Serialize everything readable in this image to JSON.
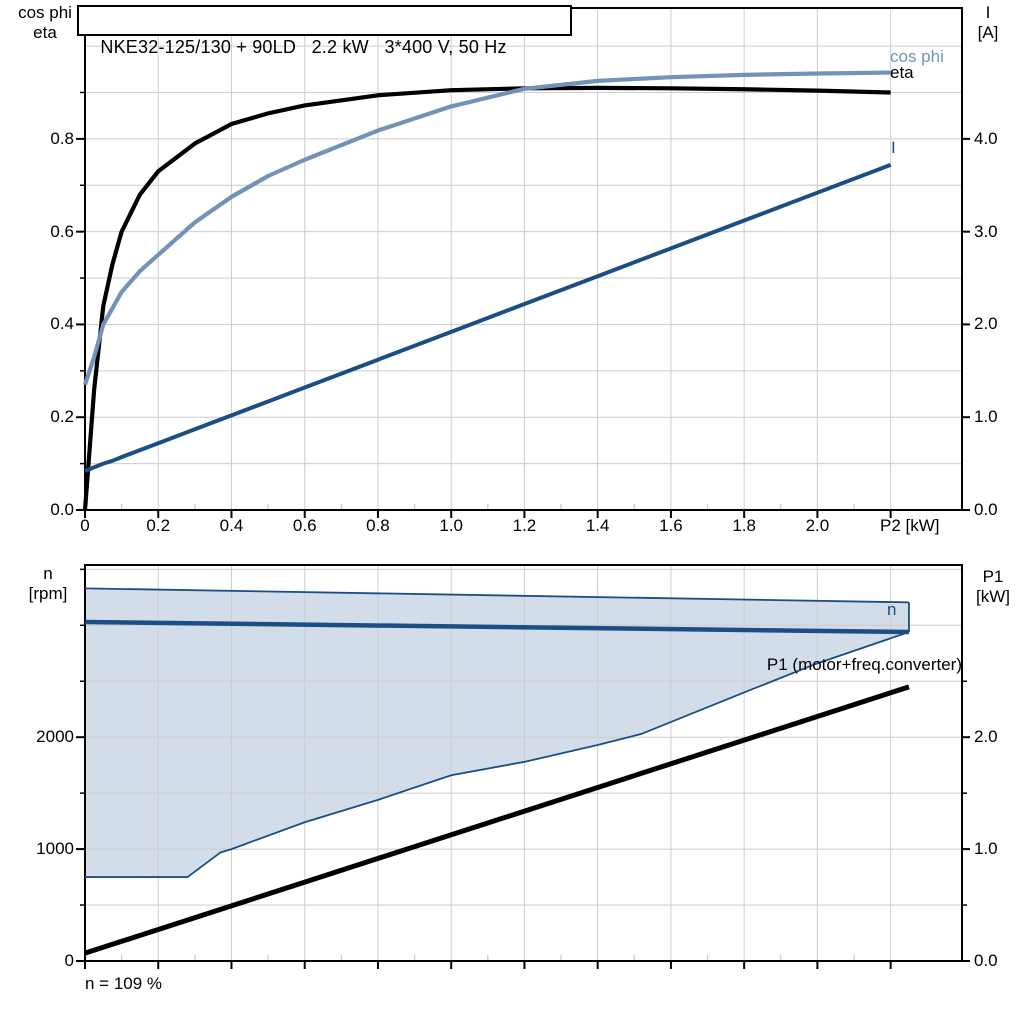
{
  "colors": {
    "eta": "#000000",
    "cos_phi": "#7293b8",
    "current": "#1b4e83",
    "speed": "#1b4e83",
    "p1": "#000000",
    "band_fill": "#d3dde9",
    "band_edge": "#1b4e83",
    "grid": "#cccccc",
    "axis": "#000000"
  },
  "top_chart": {
    "title": "NKE32-125/130 + 90LD   2.2 kW   3*400 V, 50 Hz",
    "left_axis": {
      "title": [
        "cos phi",
        "eta"
      ],
      "ticks": [
        "0.0",
        "0.2",
        "0.4",
        "0.6",
        "0.8"
      ],
      "tick_values": [
        0,
        0.2,
        0.4,
        0.6,
        0.8
      ]
    },
    "right_axis": {
      "title": [
        "I",
        "[A]"
      ],
      "ticks": [
        "0.0",
        "1.0",
        "2.0",
        "3.0",
        "4.0"
      ],
      "tick_values": [
        0,
        1,
        2,
        3,
        4
      ]
    },
    "x_axis": {
      "ticks": [
        "0",
        "0.2",
        "0.4",
        "0.6",
        "0.8",
        "1.0",
        "1.2",
        "1.4",
        "1.6",
        "1.8",
        "2.0"
      ],
      "tick_values": [
        0,
        0.2,
        0.4,
        0.6,
        0.8,
        1.0,
        1.2,
        1.4,
        1.6,
        1.8,
        2.0
      ],
      "unit_label": "P2 [kW]"
    },
    "curve_labels": {
      "cos_phi": "cos phi",
      "eta": "eta",
      "current": "I"
    }
  },
  "bottom_chart": {
    "left_axis": {
      "title": [
        "n",
        "[rpm]"
      ],
      "ticks": [
        "0",
        "1000",
        "2000"
      ],
      "tick_values": [
        0,
        1000,
        2000
      ]
    },
    "right_axis": {
      "title": [
        "P1",
        "[kW]"
      ],
      "ticks": [
        "0.0",
        "1.0",
        "2.0"
      ],
      "tick_values": [
        0,
        1,
        2
      ]
    },
    "annotation": "P1 (motor+freq.converter)",
    "n_label": "n",
    "footnote": "n = 109 %"
  },
  "chart_data": [
    {
      "type": "line",
      "title": "NKE32-125/130 + 90LD   2.2 kW   3*400 V, 50 Hz",
      "xlabel": "P2 [kW]",
      "ylabel_left": "cos phi / eta",
      "ylabel_right": "I [A]",
      "xlim": [
        0,
        2.39
      ],
      "ylim_left": [
        0,
        1.08
      ],
      "ylim_right": [
        0,
        5.4
      ],
      "grid": true,
      "x": [
        0,
        0.025,
        0.05,
        0.075,
        0.1,
        0.15,
        0.2,
        0.3,
        0.4,
        0.5,
        0.6,
        0.8,
        1.0,
        1.2,
        1.4,
        1.6,
        1.8,
        2.0,
        2.2
      ],
      "series": [
        {
          "name": "eta",
          "axis": "left",
          "color_key": "eta",
          "width": 4.2,
          "values": [
            0,
            0.26,
            0.44,
            0.53,
            0.6,
            0.68,
            0.73,
            0.79,
            0.832,
            0.855,
            0.872,
            0.894,
            0.905,
            0.909,
            0.91,
            0.909,
            0.907,
            0.904,
            0.9
          ]
        },
        {
          "name": "cos phi",
          "axis": "left",
          "color_key": "cos_phi",
          "width": 4.2,
          "values": [
            0.27,
            0.33,
            0.4,
            0.435,
            0.47,
            0.515,
            0.55,
            0.62,
            0.675,
            0.72,
            0.755,
            0.818,
            0.87,
            0.908,
            0.925,
            0.933,
            0.938,
            0.941,
            0.943
          ]
        },
        {
          "name": "I",
          "axis": "right",
          "color_key": "current",
          "width": 4,
          "values": [
            0.42,
            0.46,
            0.5,
            0.53,
            0.57,
            0.645,
            0.72,
            0.87,
            1.02,
            1.17,
            1.32,
            1.62,
            1.92,
            2.22,
            2.52,
            2.82,
            3.12,
            3.42,
            3.72
          ]
        }
      ]
    },
    {
      "type": "area+line",
      "title": "",
      "xlabel": "P2 [kW]",
      "ylabel_left": "n [rpm]",
      "ylabel_right": "P1 [kW]",
      "xlim": [
        0,
        2.39
      ],
      "ylim_left": [
        0,
        3540
      ],
      "ylim_right": [
        0,
        3.54
      ],
      "grid": true,
      "speed_band": {
        "upper_x": [
          0,
          2.25
        ],
        "upper_rpm": [
          3330,
          3205
        ],
        "lower_x": [
          0,
          0.28,
          0.37,
          0.4,
          0.6,
          0.8,
          1.0,
          1.2,
          1.4,
          1.52,
          1.8,
          2.0,
          2.25
        ],
        "lower_rpm": [
          750,
          750,
          970,
          1000,
          1240,
          1440,
          1660,
          1780,
          1930,
          2030,
          2400,
          2660,
          2940
        ]
      },
      "series": [
        {
          "name": "n",
          "axis": "left",
          "color_key": "speed",
          "width": 4.5,
          "x": [
            0,
            2.25
          ],
          "values": [
            3030,
            2940
          ]
        },
        {
          "name": "P1 (motor+freq.converter)",
          "axis": "right",
          "color_key": "p1",
          "width": 5,
          "x": [
            0,
            2.25
          ],
          "values": [
            0.07,
            2.45
          ]
        }
      ],
      "annotation": "P1 (motor+freq.converter)",
      "footnote": "n = 109 %"
    }
  ]
}
